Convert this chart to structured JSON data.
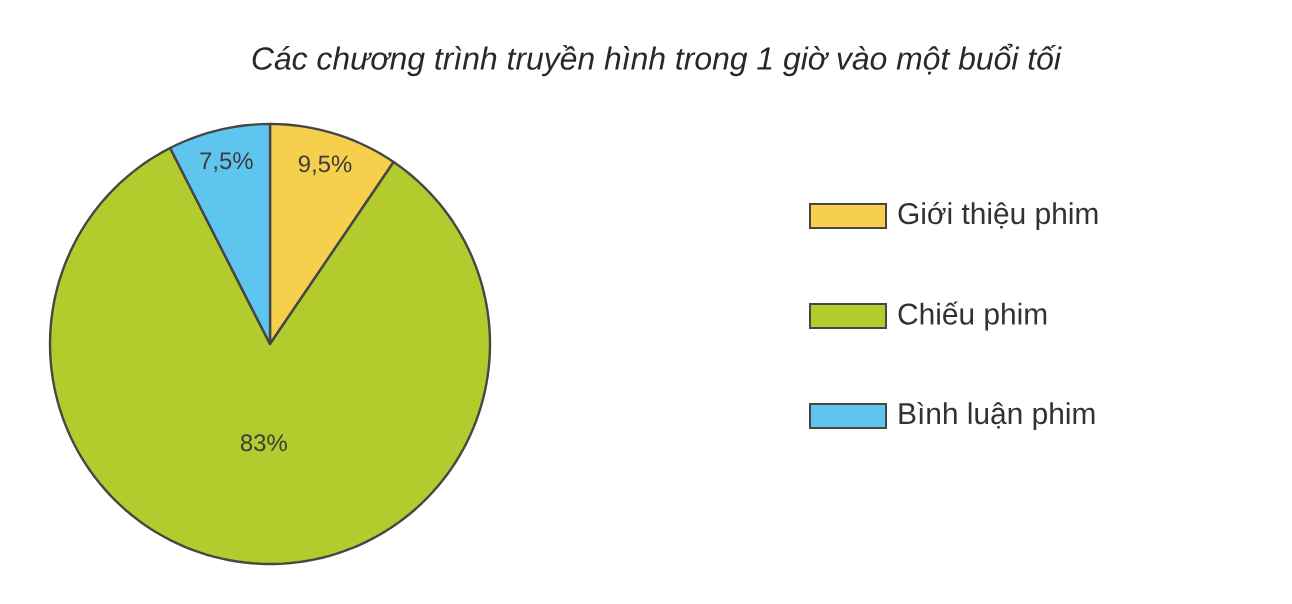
{
  "chart_data": {
    "type": "pie",
    "title": "Các chương trình truyền hình trong 1 giờ vào một buổi tối",
    "categories": [
      "Giới thiệu phim",
      "Chiếu phim",
      "Bình luận phim"
    ],
    "values": [
      9.5,
      83,
      7.5
    ],
    "value_labels": [
      "9,5%",
      "83%",
      "7,5%"
    ],
    "colors": [
      "#f6d04d",
      "#b4cb2d",
      "#5ec6ee"
    ],
    "legend": "right"
  }
}
